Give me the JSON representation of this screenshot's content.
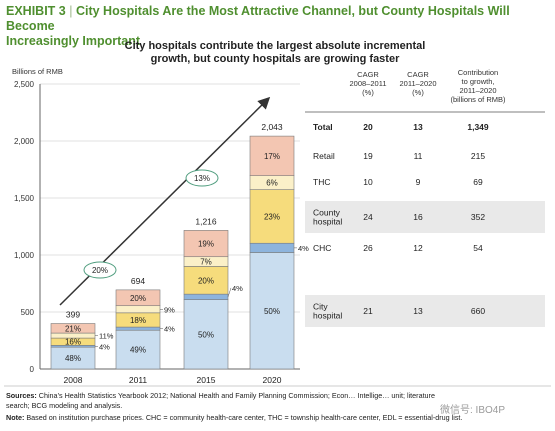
{
  "header": {
    "exhibit_label": "EXHIBIT 3",
    "title_line1": "City Hospitals Are the Most Attractive Channel, but County Hospitals Will Become",
    "title_line2": "Increasingly Important"
  },
  "chart_data": {
    "type": "bar",
    "subtitle_line1": "City hospitals contribute the largest absolute incremental",
    "subtitle_line2": "growth, but county hospitals are growing faster",
    "ylabel": "Billions of RMB",
    "ylim": [
      0,
      2500
    ],
    "yticks": [
      "0",
      "500",
      "1,000",
      "1,500",
      "2,000",
      "2,500"
    ],
    "categories": [
      "2008",
      "2011",
      "2015",
      "2020"
    ],
    "totals": [
      "399",
      "694",
      "1,216",
      "2,043"
    ],
    "total_values": [
      399,
      694,
      1216,
      2043
    ],
    "series": [
      {
        "name": "City hospital",
        "color": "#c9ddef",
        "pct": [
          48,
          49,
          50,
          50
        ],
        "labels": [
          "48%",
          "49%",
          "50%",
          "50%"
        ]
      },
      {
        "name": "CHC",
        "color": "#8db4dd",
        "pct": [
          4,
          4,
          4,
          4
        ],
        "labels": [
          "4%",
          "4%",
          "4%",
          "4%"
        ]
      },
      {
        "name": "County hospital",
        "color": "#f6dc7c",
        "pct": [
          16,
          18,
          20,
          23
        ],
        "labels": [
          "16%",
          "18%",
          "20%",
          "23%"
        ]
      },
      {
        "name": "THC",
        "color": "#fbf0c8",
        "pct": [
          11,
          9,
          7,
          6
        ],
        "labels": [
          "11%",
          "9%",
          "7%",
          "6%"
        ]
      },
      {
        "name": "Retail",
        "color": "#f3c6b2",
        "pct": [
          21,
          20,
          19,
          17
        ],
        "labels": [
          "21%",
          "20%",
          "19%",
          "17%"
        ]
      }
    ],
    "cagr_bubbles": [
      "20%",
      "13%"
    ]
  },
  "table": {
    "headers": [
      [
        "CAGR",
        "2008–2011",
        "(%)"
      ],
      [
        "CAGR",
        "2011–2020",
        "(%)"
      ],
      [
        "Contribution",
        "to growth,",
        "2011–2020",
        "(billions of RMB)"
      ]
    ],
    "rows": [
      {
        "label": [
          "Total"
        ],
        "c1": "20",
        "c2": "13",
        "c3": "1,349",
        "bold": true
      },
      {
        "label": [
          "Retail"
        ],
        "c1": "19",
        "c2": "11",
        "c3": "215"
      },
      {
        "label": [
          "THC"
        ],
        "c1": "10",
        "c2": "9",
        "c3": "69"
      },
      {
        "label": [
          "County",
          "hospital"
        ],
        "c1": "24",
        "c2": "16",
        "c3": "352"
      },
      {
        "label": [
          "CHC"
        ],
        "c1": "26",
        "c2": "12",
        "c3": "54"
      },
      {
        "label": [
          "City",
          "hospital"
        ],
        "c1": "21",
        "c2": "13",
        "c3": "660"
      }
    ]
  },
  "footnotes": {
    "sources_label": "Sources:",
    "sources_text": "China’s Health Statistics Yearbook 2012; National Health and Family Planning Commission; Econ… Intellige… unit; literature",
    "sources_text2": "search; BCG modeling and analysis.",
    "note_label": "Note:",
    "note_text": "Based on institution purchase prices. CHC = community health-care center, THC = township health-care center, EDL = essential-drug list."
  },
  "watermark": "微信号: IBO4P"
}
